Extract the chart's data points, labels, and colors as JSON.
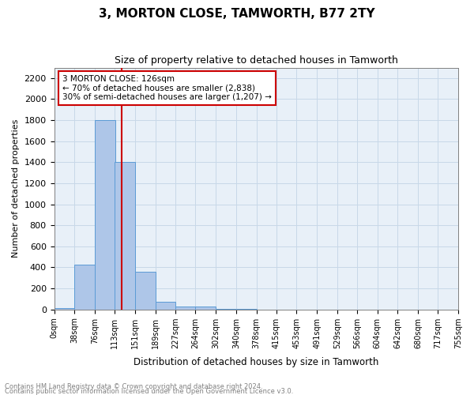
{
  "title": "3, MORTON CLOSE, TAMWORTH, B77 2TY",
  "subtitle": "Size of property relative to detached houses in Tamworth",
  "xlabel": "Distribution of detached houses by size in Tamworth",
  "ylabel": "Number of detached properties",
  "footer_line1": "Contains HM Land Registry data © Crown copyright and database right 2024.",
  "footer_line2": "Contains public sector information licensed under the Open Government Licence v3.0.",
  "annotation_line1": "3 MORTON CLOSE: 126sqm",
  "annotation_line2": "← 70% of detached houses are smaller (2,838)",
  "annotation_line3": "30% of semi-detached houses are larger (1,207) →",
  "bar_values": [
    15,
    425,
    1800,
    1400,
    355,
    75,
    25,
    25,
    5,
    5,
    0,
    0,
    0,
    0,
    0,
    0,
    0,
    0,
    0,
    0
  ],
  "bin_edges": [
    0,
    38,
    76,
    113,
    151,
    189,
    227,
    264,
    302,
    340,
    378,
    415,
    453,
    491,
    529,
    566,
    604,
    642,
    680,
    717,
    755
  ],
  "tick_labels": [
    "0sqm",
    "38sqm",
    "76sqm",
    "113sqm",
    "151sqm",
    "189sqm",
    "227sqm",
    "264sqm",
    "302sqm",
    "340sqm",
    "378sqm",
    "415sqm",
    "453sqm",
    "491sqm",
    "529sqm",
    "566sqm",
    "604sqm",
    "642sqm",
    "680sqm",
    "717sqm",
    "755sqm"
  ],
  "property_size": 126,
  "bar_color": "#aec6e8",
  "bar_edge_color": "#5b9bd5",
  "vline_color": "#cc0000",
  "annotation_box_color": "#cc0000",
  "grid_color": "#c8d8e8",
  "background_color": "#e8f0f8",
  "ylim": [
    0,
    2300
  ],
  "yticks": [
    0,
    200,
    400,
    600,
    800,
    1000,
    1200,
    1400,
    1600,
    1800,
    2000,
    2200
  ]
}
